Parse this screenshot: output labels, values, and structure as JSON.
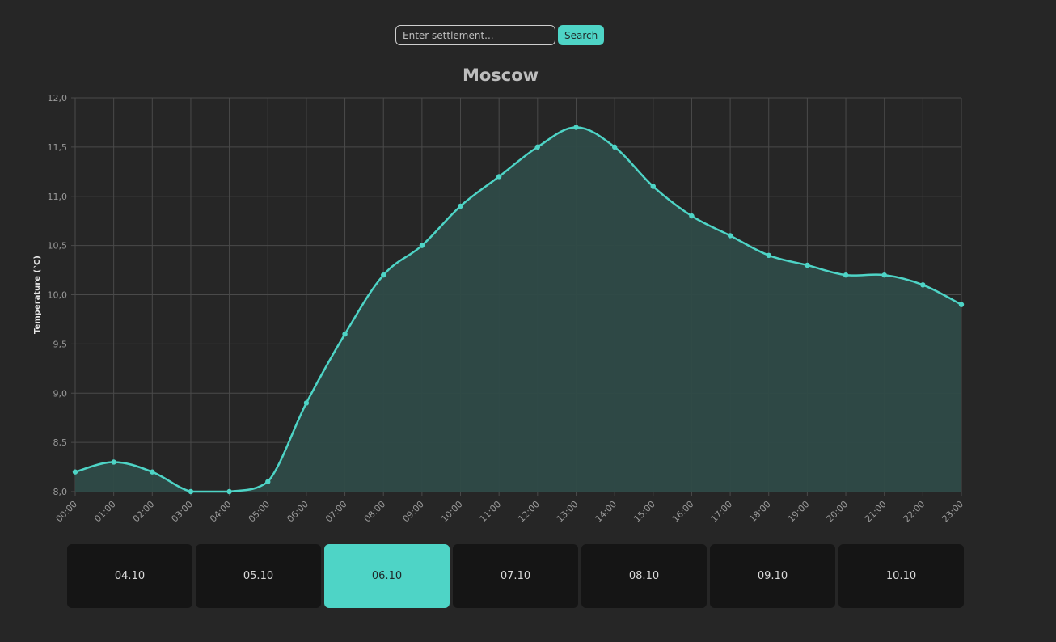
{
  "search": {
    "placeholder": "Enter settlement...",
    "value": "",
    "button_label": "Search"
  },
  "date_tabs": [
    {
      "label": "04.10",
      "active": false
    },
    {
      "label": "05.10",
      "active": false
    },
    {
      "label": "06.10",
      "active": true
    },
    {
      "label": "07.10",
      "active": false
    },
    {
      "label": "08.10",
      "active": false
    },
    {
      "label": "09.10",
      "active": false
    },
    {
      "label": "10.10",
      "active": false
    }
  ],
  "colors": {
    "accent": "#4ed4c6",
    "area_fill": "#2e4a47",
    "grid": "#4a4a4a",
    "background": "#262626",
    "tab_background": "#151515"
  },
  "chart_data": {
    "type": "area",
    "title": "Moscow",
    "xlabel": "",
    "ylabel": "Temperature (°C)",
    "x": [
      "00:00",
      "01:00",
      "02:00",
      "03:00",
      "04:00",
      "05:00",
      "06:00",
      "07:00",
      "08:00",
      "09:00",
      "10:00",
      "11:00",
      "12:00",
      "13:00",
      "14:00",
      "15:00",
      "16:00",
      "17:00",
      "18:00",
      "19:00",
      "20:00",
      "21:00",
      "22:00",
      "23:00"
    ],
    "series": [
      {
        "values": [
          8.2,
          8.3,
          8.2,
          8.0,
          8.0,
          8.1,
          8.9,
          9.6,
          10.2,
          10.5,
          10.9,
          11.2,
          11.5,
          11.7,
          11.5,
          11.1,
          10.8,
          10.6,
          10.4,
          10.3,
          10.2,
          10.2,
          10.1,
          9.9
        ]
      }
    ],
    "ylim": [
      8.0,
      12.0
    ],
    "yticks": [
      "8,0",
      "8,5",
      "9,0",
      "9,5",
      "10,0",
      "10,5",
      "11,0",
      "11,5",
      "12,0"
    ],
    "grid": true,
    "legend": "none",
    "smooth": true
  }
}
